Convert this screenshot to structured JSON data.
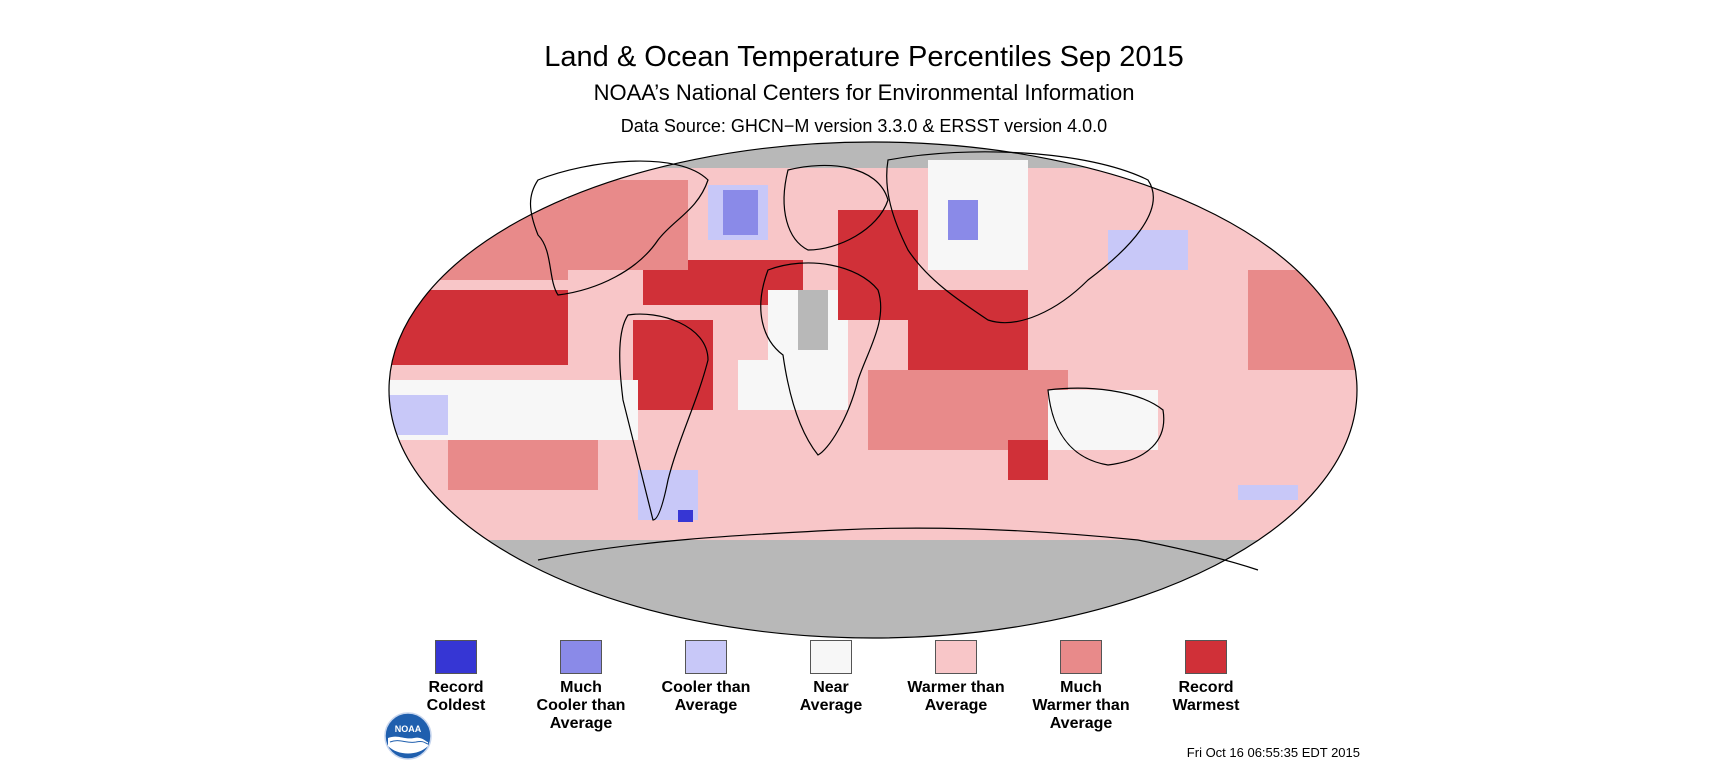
{
  "header": {
    "title": "Land & Ocean Temperature Percentiles Sep 2015",
    "subtitle": "NOAA’s National Centers for Environmental Information",
    "source": "Data Source: GHCN−M version 3.3.0 & ERSST version 4.0.0"
  },
  "legend": [
    {
      "label": "Record\nColdest",
      "color": "#3636d4"
    },
    {
      "label": "Much\nCooler than\nAverage",
      "color": "#8a8ae8"
    },
    {
      "label": "Cooler than\nAverage",
      "color": "#c8c8f8"
    },
    {
      "label": "Near\nAverage",
      "color": "#f7f7f7"
    },
    {
      "label": "Warmer than\nAverage",
      "color": "#f8c6c8"
    },
    {
      "label": "Much\nWarmer than\nAverage",
      "color": "#e88a8a"
    },
    {
      "label": "Record\nWarmest",
      "color": "#d03038"
    }
  ],
  "colors": {
    "no_data": "#b8b8b8",
    "map_outline": "#000000"
  },
  "logo": {
    "text": "NOAA"
  },
  "footer": {
    "timestamp": "Fri Oct 16 06:55:35 EDT 2015"
  }
}
